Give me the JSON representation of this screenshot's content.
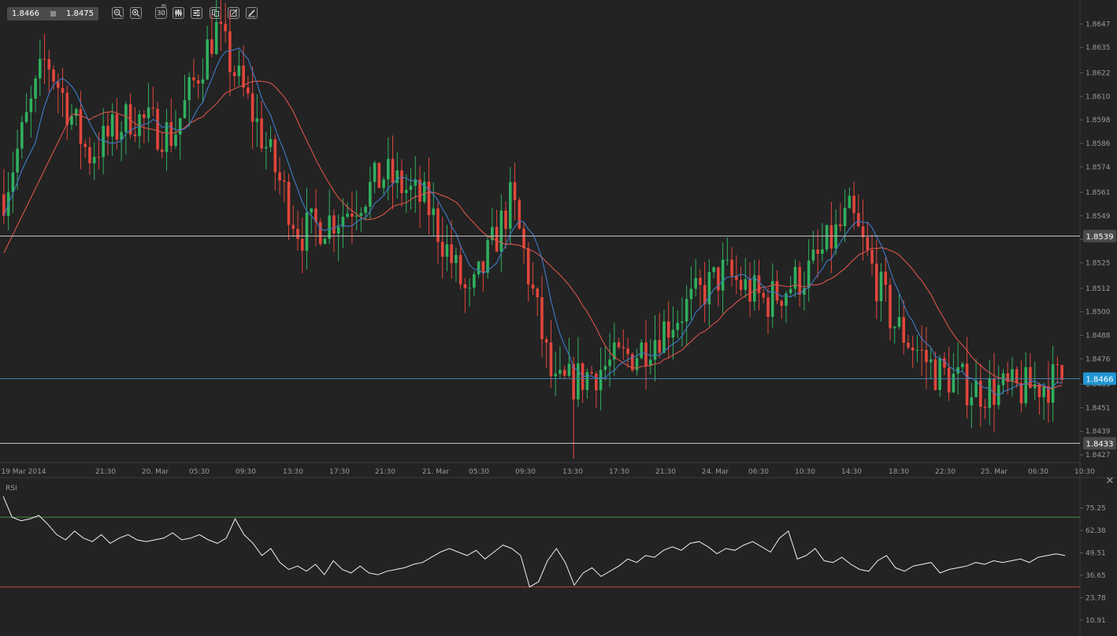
{
  "toolbar": {
    "bid": "1.8466",
    "ask": "1.8475",
    "buttons": [
      {
        "name": "zoom-out-icon"
      },
      {
        "name": "zoom-in-icon"
      },
      {
        "name": "timeframe-button",
        "label": "30",
        "sup": "m"
      },
      {
        "name": "candlestick-type-icon"
      },
      {
        "name": "indicators-icon"
      },
      {
        "name": "copy-icon"
      },
      {
        "name": "drawing-icon"
      },
      {
        "name": "pencil-icon"
      }
    ]
  },
  "colors": {
    "background": "#232323",
    "bull": "#2fb05e",
    "bear": "#e2463b",
    "ma_fast": "#3d7cc9",
    "ma_slow": "#d9534a",
    "current_price_tag": "#2196d3",
    "level_line": "#bfbfbf",
    "rsi_upper": "#4f8a4b",
    "rsi_lower": "#b8473f"
  },
  "chart_data": [
    {
      "type": "candlestick",
      "y_ticks": [
        "1.8647",
        "1.8635",
        "1.8622",
        "1.8610",
        "1.8598",
        "1.8586",
        "1.8574",
        "1.8561",
        "1.8549",
        "1.8537",
        "1.8525",
        "1.8512",
        "1.8500",
        "1.8488",
        "1.8476",
        "1.8463",
        "1.8451",
        "1.8439",
        "1.8427"
      ],
      "ylim": [
        1.8423,
        1.8656
      ],
      "x_ticks": [
        "19 Mar 2014",
        "21:30",
        "20. Mar",
        "05:30",
        "09:30",
        "13:30",
        "17:30",
        "21:30",
        "21. Mar",
        "05:30",
        "09:30",
        "13:30",
        "17:30",
        "21:30",
        "24. Mar",
        "06:30",
        "10:30",
        "14:30",
        "18:30",
        "22:30",
        "25. Mar",
        "06:30",
        "10:30"
      ],
      "horizontal_levels": [
        {
          "value": "1.8539",
          "price": 1.8539,
          "style": "level"
        },
        {
          "value": "1.8466",
          "price": 1.8466,
          "style": "current"
        },
        {
          "value": "1.8433",
          "price": 1.8433,
          "style": "level"
        }
      ],
      "series": [
        {
          "name": "",
          "key_prices": [
            1.856,
            1.863,
            1.858,
            1.86,
            1.859,
            1.8645,
            1.8595,
            1.854,
            1.855,
            1.857,
            1.8555,
            1.8505,
            1.8558,
            1.846,
            1.847,
            1.848,
            1.85,
            1.852,
            1.8505,
            1.852,
            1.855,
            1.8495,
            1.847,
            1.846,
            1.846,
            1.8466
          ]
        }
      ]
    },
    {
      "type": "line",
      "title": "RSI",
      "y_ticks": [
        "75.25",
        "62.38",
        "49.51",
        "36.65",
        "23.78",
        "10.91"
      ],
      "ylim": [
        5,
        90
      ],
      "levels": [
        70,
        30
      ],
      "series": [
        {
          "name": "RSI",
          "values": [
            82,
            70,
            68,
            69,
            71,
            66,
            60,
            57,
            62,
            58,
            56,
            60,
            55,
            58,
            60,
            57,
            56,
            57,
            58,
            61,
            57,
            58,
            60,
            57,
            55,
            58,
            69,
            60,
            55,
            48,
            52,
            44,
            40,
            42,
            39,
            43,
            37,
            45,
            40,
            38,
            42,
            38,
            37,
            39,
            40,
            41,
            43,
            44,
            47,
            50,
            52,
            50,
            48,
            51,
            46,
            50,
            54,
            52,
            48,
            30,
            33,
            45,
            52,
            44,
            31,
            38,
            41,
            36,
            39,
            42,
            46,
            44,
            48,
            47,
            51,
            53,
            51,
            55,
            56,
            53,
            49,
            52,
            51,
            54,
            56,
            53,
            50,
            58,
            62,
            46,
            48,
            52,
            45,
            44,
            47,
            43,
            40,
            39,
            45,
            48,
            41,
            39,
            42,
            43,
            44,
            38,
            40,
            41,
            42,
            44,
            43,
            45,
            44,
            45,
            46,
            44,
            47,
            48,
            49,
            48
          ]
        }
      ]
    }
  ],
  "rsi_label": "RSI",
  "close_label": "✕"
}
